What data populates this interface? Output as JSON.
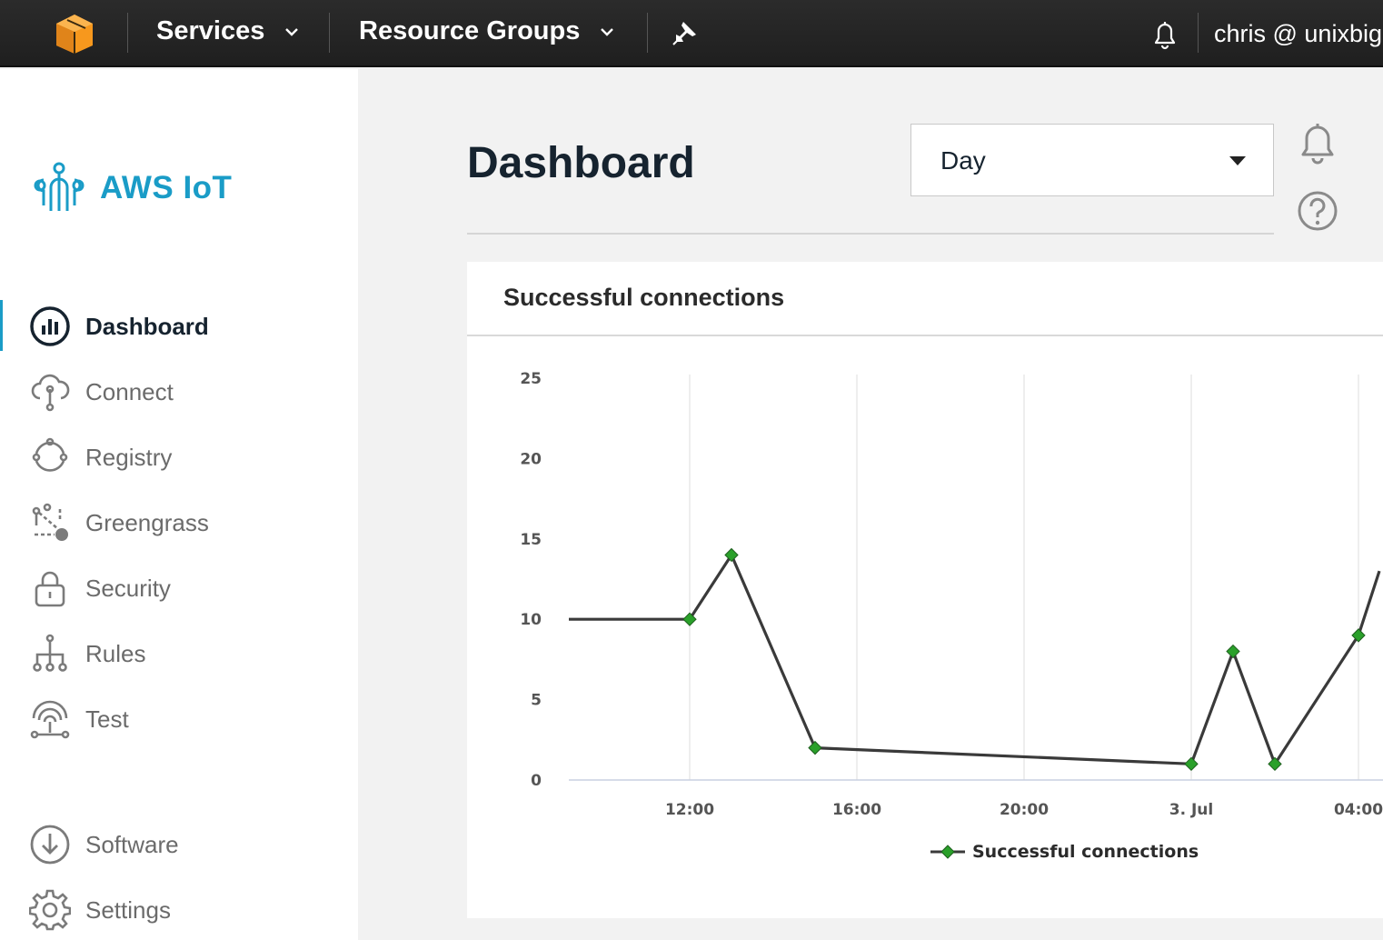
{
  "topnav": {
    "services_label": "Services",
    "resource_groups_label": "Resource Groups",
    "user_label": "chris @ unixbig"
  },
  "sidebar": {
    "brand": "AWS IoT",
    "items": [
      {
        "label": "Dashboard",
        "icon": "dashboard-icon"
      },
      {
        "label": "Connect",
        "icon": "cloud-connect-icon"
      },
      {
        "label": "Registry",
        "icon": "registry-icon"
      },
      {
        "label": "Greengrass",
        "icon": "greengrass-icon"
      },
      {
        "label": "Security",
        "icon": "lock-icon"
      },
      {
        "label": "Rules",
        "icon": "rules-icon"
      },
      {
        "label": "Test",
        "icon": "antenna-icon"
      }
    ],
    "bottom_items": [
      {
        "label": "Software",
        "icon": "download-icon"
      },
      {
        "label": "Settings",
        "icon": "gear-icon"
      }
    ]
  },
  "main": {
    "title": "Dashboard",
    "time_range": "Day"
  },
  "card": {
    "title": "Successful connections"
  },
  "colors": {
    "accent": "#1a9cc7",
    "series": "#3a3a3a",
    "marker": "#2aa02a",
    "aws_orange": "#f7981d"
  },
  "chart_data": {
    "type": "line",
    "x_ticks": [
      "12:00",
      "16:00",
      "20:00",
      "3. Jul",
      "04:00"
    ],
    "ylim": [
      0,
      25
    ],
    "y_ticks": [
      0,
      5,
      10,
      15,
      20,
      25
    ],
    "series": [
      {
        "name": "Successful connections",
        "points": [
          {
            "x": "2 Jul 09:00",
            "y": 10,
            "marker": false
          },
          {
            "x": "2 Jul 12:00",
            "y": 10
          },
          {
            "x": "2 Jul 13:00",
            "y": 14
          },
          {
            "x": "2 Jul 15:00",
            "y": 2
          },
          {
            "x": "3 Jul 00:00",
            "y": 1
          },
          {
            "x": "3 Jul 01:00",
            "y": 8
          },
          {
            "x": "3 Jul 02:00",
            "y": 1
          },
          {
            "x": "3 Jul 04:00",
            "y": 9
          },
          {
            "x": "3 Jul 04:30",
            "y": 13,
            "marker": false
          }
        ]
      }
    ],
    "legend": "bottom-center",
    "grid": "vertical"
  }
}
